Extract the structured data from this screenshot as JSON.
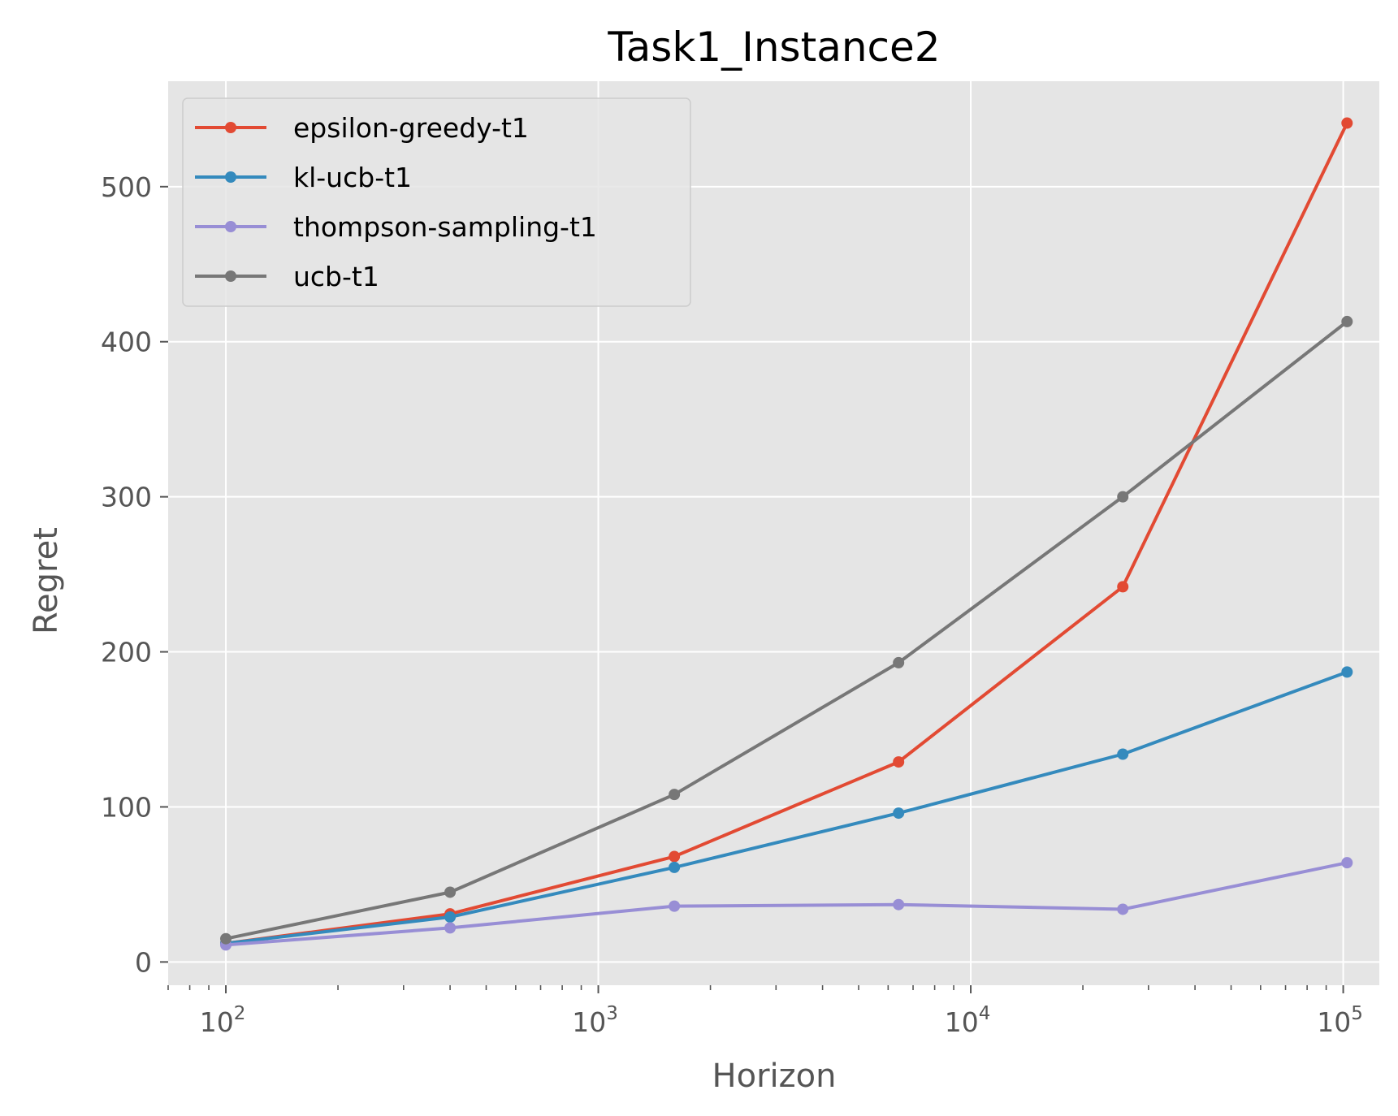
{
  "chart_data": {
    "type": "line",
    "title": "Task1_Instance2",
    "xlabel": "Horizon",
    "ylabel": "Regret",
    "x_scale": "log",
    "xlim": [
      70,
      125000
    ],
    "ylim": [
      -15,
      568
    ],
    "x_ticks": [
      {
        "value": 100,
        "base": "10",
        "exp": "2"
      },
      {
        "value": 1000,
        "base": "10",
        "exp": "3"
      },
      {
        "value": 10000,
        "base": "10",
        "exp": "4"
      },
      {
        "value": 100000,
        "base": "10",
        "exp": "5"
      }
    ],
    "y_ticks": [
      {
        "value": 0,
        "label": "0"
      },
      {
        "value": 100,
        "label": "100"
      },
      {
        "value": 200,
        "label": "200"
      },
      {
        "value": 300,
        "label": "300"
      },
      {
        "value": 400,
        "label": "400"
      },
      {
        "value": 500,
        "label": "500"
      }
    ],
    "grid": true,
    "legend_position": "top-left",
    "x": [
      100,
      400,
      1600,
      6400,
      25600,
      102400
    ],
    "series": [
      {
        "name": "epsilon-greedy-t1",
        "color": "#E24A33",
        "values": [
          12,
          31,
          68,
          129,
          242,
          541
        ]
      },
      {
        "name": "kl-ucb-t1",
        "color": "#348ABD",
        "values": [
          12,
          29,
          61,
          96,
          134,
          187
        ]
      },
      {
        "name": "thompson-sampling-t1",
        "color": "#988ED5",
        "values": [
          11,
          22,
          36,
          37,
          34,
          64
        ]
      },
      {
        "name": "ucb-t1",
        "color": "#777777",
        "values": [
          15,
          45,
          108,
          193,
          300,
          413
        ]
      }
    ]
  }
}
